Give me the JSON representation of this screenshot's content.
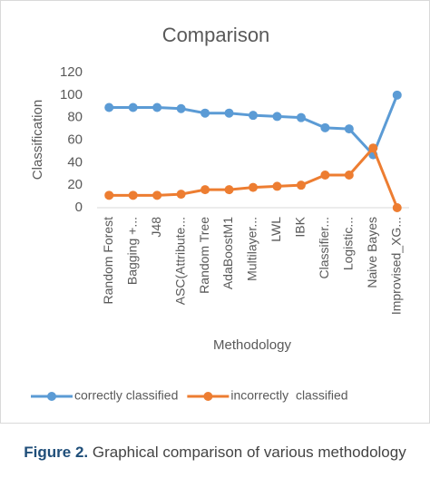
{
  "chart_data": {
    "type": "line",
    "title": "Comparison",
    "x_label": "Methodology",
    "y_label": "Classification",
    "categories": [
      "Random Forest",
      "Bagging +...",
      "J48",
      "ASC(Attribute...",
      "Random Tree",
      "AdaBoostM1",
      "Multilayer...",
      "LWL",
      "IBK",
      "Classifier...",
      "Logistic...",
      "Naive Bayes",
      "Improvised_XG..."
    ],
    "series": [
      {
        "name": "correctly classified",
        "color": "#5b9bd5",
        "values": [
          89,
          89,
          89,
          88,
          84,
          84,
          82,
          81,
          80,
          71,
          70,
          47,
          100
        ]
      },
      {
        "name": "incorrectly  classified",
        "color": "#ed7d31",
        "values": [
          11,
          11,
          11,
          12,
          16,
          16,
          18,
          19,
          20,
          29,
          29,
          53,
          0
        ]
      }
    ],
    "ylim": [
      0,
      120
    ],
    "yticks": [
      0,
      20,
      40,
      60,
      80,
      100,
      120
    ],
    "grid": false,
    "legend": "bottom"
  },
  "caption": {
    "label": "Figure 2.",
    "text": "Graphical comparison of various methodology"
  }
}
